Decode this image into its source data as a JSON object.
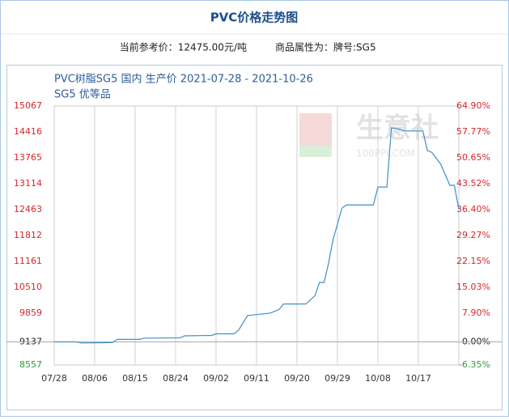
{
  "header": {
    "title": "PVC价格走势图",
    "reference_price": "当前参考价：12475.00元/吨",
    "attribute": "商品属性为：牌号:SG5"
  },
  "watermark": {
    "name": "生意社",
    "site": "100PPI.COM"
  },
  "chart_data": {
    "type": "line",
    "title": "PVC树脂SG5 国内 生产价 2021-07-28 - 2021-10-26",
    "subtitle": "SG5 优等品",
    "x": [
      "07/28",
      "08/02",
      "08/03",
      "08/10",
      "08/11",
      "08/16",
      "08/17",
      "08/25",
      "08/26",
      "09/01",
      "09/02",
      "09/06",
      "09/07",
      "09/09",
      "09/14",
      "09/16",
      "09/17",
      "09/22",
      "09/24",
      "09/25",
      "09/26",
      "09/27",
      "09/28",
      "09/30",
      "10/01",
      "10/07",
      "10/08",
      "10/10",
      "10/11",
      "10/13",
      "10/14",
      "10/18",
      "10/19",
      "10/20",
      "10/22",
      "10/24",
      "10/25",
      "10/26"
    ],
    "series": [
      {
        "name": "PVC树脂SG5",
        "color": "#3f8fc8",
        "values": [
          9137,
          9137,
          9110,
          9120,
          9200,
          9200,
          9230,
          9240,
          9290,
          9300,
          9340,
          9340,
          9430,
          9800,
          9860,
          9950,
          10090,
          10090,
          10300,
          10630,
          10630,
          11100,
          11700,
          12500,
          12580,
          12580,
          13030,
          13030,
          14517,
          14480,
          14440,
          14440,
          13947,
          13900,
          13600,
          13073,
          13073,
          12475
        ]
      }
    ],
    "xlim": [
      "07/28",
      "10/26"
    ],
    "xticks": [
      "07/28",
      "08/06",
      "08/15",
      "08/24",
      "09/02",
      "09/11",
      "09/20",
      "09/29",
      "10/08",
      "10/17"
    ],
    "ylim": [
      8557,
      15067
    ],
    "yticks": [
      8557,
      9137,
      9859,
      10510,
      11161,
      11812,
      12463,
      13114,
      13765,
      14416,
      15067
    ],
    "y2lim": [
      -6.35,
      64.9
    ],
    "y2ticks": [
      {
        "value": -6.35,
        "label": "-6.35%"
      },
      {
        "value": 0,
        "label": "0.00%"
      },
      {
        "value": 7.9,
        "label": "7.90%"
      },
      {
        "value": 15.03,
        "label": "15.03%"
      },
      {
        "value": 22.15,
        "label": "22.15%"
      },
      {
        "value": 29.27,
        "label": "29.27%"
      },
      {
        "value": 36.4,
        "label": "36.40%"
      },
      {
        "value": 43.52,
        "label": "43.52%"
      },
      {
        "value": 50.65,
        "label": "50.65%"
      },
      {
        "value": 57.77,
        "label": "57.77%"
      },
      {
        "value": 64.9,
        "label": "64.90%"
      }
    ],
    "grid": "x",
    "up_color": "#d7262b",
    "down_color": "#2f9a3a",
    "base_color": "#222222"
  }
}
